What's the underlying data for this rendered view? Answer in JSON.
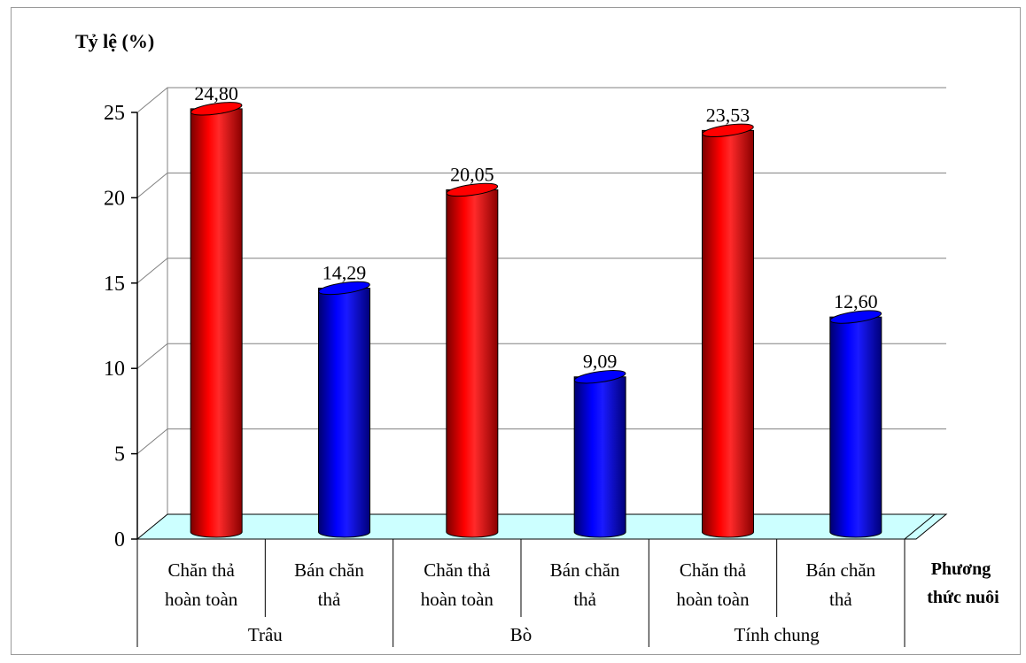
{
  "chart_data": {
    "type": "bar",
    "ylabel": "Tỷ lệ (%)",
    "xlabel_lines": [
      "Phương",
      "thức nuôi"
    ],
    "ylim": [
      0,
      25
    ],
    "yticks": [
      "0",
      "5",
      "10",
      "15",
      "20",
      "25"
    ],
    "groups": [
      {
        "label": "Trâu",
        "bars": [
          {
            "label_lines": [
              "Chăn thả",
              "hoàn toàn"
            ],
            "value": 24.8,
            "value_label": "24,80",
            "color": "#ff0000"
          },
          {
            "label_lines": [
              "Bán chăn",
              "thả"
            ],
            "value": 14.29,
            "value_label": "14,29",
            "color": "#0000ff"
          }
        ]
      },
      {
        "label": "Bò",
        "bars": [
          {
            "label_lines": [
              "Chăn thả",
              "hoàn toàn"
            ],
            "value": 20.05,
            "value_label": "20,05",
            "color": "#ff0000"
          },
          {
            "label_lines": [
              "Bán chăn",
              "thả"
            ],
            "value": 9.09,
            "value_label": "9,09",
            "color": "#0000ff"
          }
        ]
      },
      {
        "label": "Tính chung",
        "bars": [
          {
            "label_lines": [
              "Chăn thả",
              "hoàn toàn"
            ],
            "value": 23.53,
            "value_label": "23,53",
            "color": "#ff0000"
          },
          {
            "label_lines": [
              "Bán chăn",
              "thả"
            ],
            "value": 12.6,
            "value_label": "12,60",
            "color": "#0000ff"
          }
        ]
      }
    ],
    "floor_color": "#ccffff",
    "grid": true
  }
}
